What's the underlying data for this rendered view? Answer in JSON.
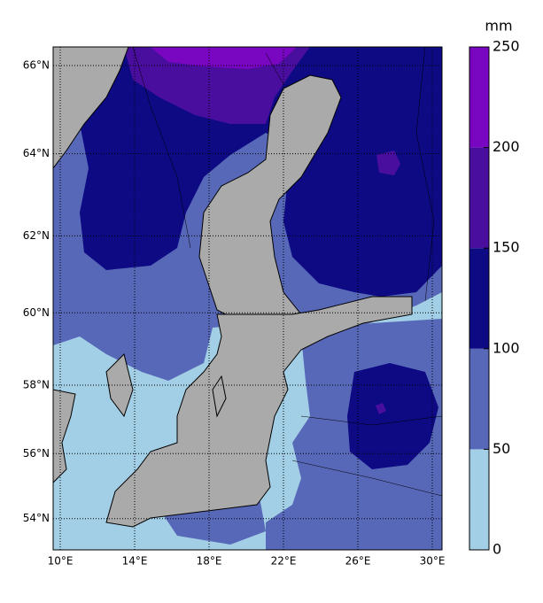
{
  "map": {
    "lat_labels": [
      {
        "value": 66,
        "label": "66°N"
      },
      {
        "value": 64,
        "label": "64°N"
      },
      {
        "value": 62,
        "label": "62°N"
      },
      {
        "value": 60,
        "label": "60°N"
      },
      {
        "value": 58,
        "label": "58°N"
      },
      {
        "value": 56,
        "label": "56°N"
      },
      {
        "value": 54,
        "label": "54°N"
      }
    ],
    "lon_labels": [
      {
        "value": 10,
        "label": "10°E"
      },
      {
        "value": 14,
        "label": "14°E"
      },
      {
        "value": 18,
        "label": "18°E"
      },
      {
        "value": 22,
        "label": "22°E"
      },
      {
        "value": 26,
        "label": "26°E"
      },
      {
        "value": 30,
        "label": "30°E"
      }
    ]
  },
  "colorbar": {
    "label": "mm",
    "ticks": [
      0,
      50,
      100,
      150,
      200,
      250
    ],
    "colors": [
      "#a2cfe6",
      "#5868b8",
      "#0d0a84",
      "#4a0e9e",
      "#7906c1"
    ]
  }
}
